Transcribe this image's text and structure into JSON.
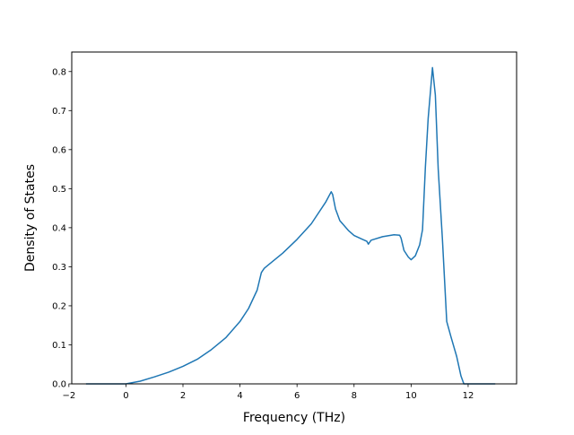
{
  "chart_data": {
    "type": "line",
    "title": "",
    "xlabel": "Frequency (THz)",
    "ylabel": "Density of States",
    "xlim": [
      -1.9,
      13.7
    ],
    "ylim": [
      0.0,
      0.85
    ],
    "xticks": [
      -2,
      0,
      2,
      4,
      6,
      8,
      10,
      12
    ],
    "xtick_labels": [
      "−2",
      "0",
      "2",
      "4",
      "6",
      "8",
      "10",
      "12"
    ],
    "yticks": [
      0.0,
      0.1,
      0.2,
      0.3,
      0.4,
      0.5,
      0.6,
      0.7,
      0.8
    ],
    "ytick_labels": [
      "0.0",
      "0.1",
      "0.2",
      "0.3",
      "0.4",
      "0.5",
      "0.6",
      "0.7",
      "0.8"
    ],
    "grid": false,
    "legend": "none",
    "colors": {
      "line": "#1f77b4"
    },
    "series": [
      {
        "x": [
          -1.4,
          -0.5,
          0.0,
          0.5,
          1.0,
          1.5,
          2.0,
          2.5,
          3.0,
          3.5,
          4.0,
          4.3,
          4.6,
          4.75,
          4.85,
          5.0,
          5.5,
          6.0,
          6.5,
          7.0,
          7.2,
          7.25,
          7.35,
          7.5,
          7.8,
          8.0,
          8.3,
          8.45,
          8.5,
          8.6,
          9.0,
          9.4,
          9.6,
          9.65,
          9.75,
          9.9,
          10.0,
          10.15,
          10.3,
          10.4,
          10.5,
          10.6,
          10.75,
          10.85,
          10.95,
          11.1,
          11.25,
          11.4,
          11.6,
          11.75,
          11.85,
          12.5,
          12.95
        ],
        "y": [
          0.0,
          0.0,
          0.0,
          0.007,
          0.018,
          0.03,
          0.045,
          0.063,
          0.088,
          0.118,
          0.16,
          0.193,
          0.24,
          0.285,
          0.296,
          0.305,
          0.335,
          0.37,
          0.41,
          0.465,
          0.492,
          0.485,
          0.448,
          0.418,
          0.393,
          0.38,
          0.37,
          0.365,
          0.358,
          0.368,
          0.377,
          0.382,
          0.381,
          0.373,
          0.342,
          0.325,
          0.318,
          0.328,
          0.356,
          0.395,
          0.555,
          0.68,
          0.81,
          0.74,
          0.55,
          0.37,
          0.16,
          0.12,
          0.07,
          0.02,
          0.0,
          0.0,
          0.0
        ]
      }
    ]
  }
}
